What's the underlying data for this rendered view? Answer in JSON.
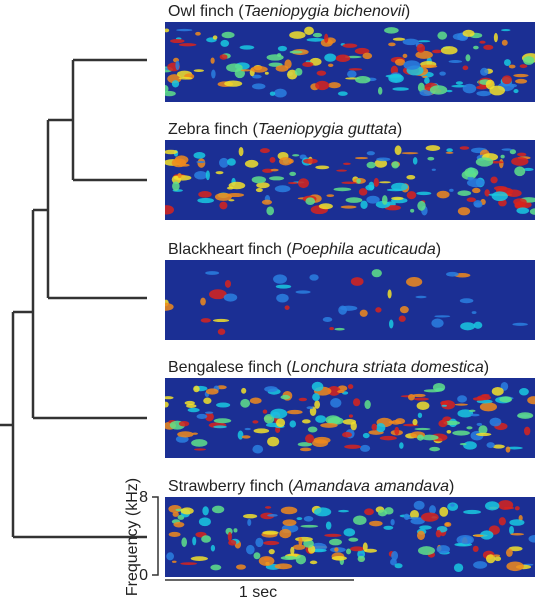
{
  "species": [
    {
      "label": [
        "Owl finch (",
        "Taeniopygia bichenovii",
        ")"
      ]
    },
    {
      "label": [
        "Zebra finch (",
        "Taeniopygia guttata",
        ")"
      ]
    },
    {
      "label": [
        "Blackheart finch (",
        "Poephila acuticauda",
        ")"
      ]
    },
    {
      "label": [
        "Bengalese finch (",
        "Lonchura striata domestica",
        ")"
      ]
    },
    {
      "label": [
        "Strawberry finch (",
        "Amandava amandava",
        ")"
      ]
    }
  ],
  "frequency_axis": {
    "label": "Frequency (kHz)",
    "ticks": [
      8,
      0
    ]
  },
  "scale_bar": "1 sec"
}
